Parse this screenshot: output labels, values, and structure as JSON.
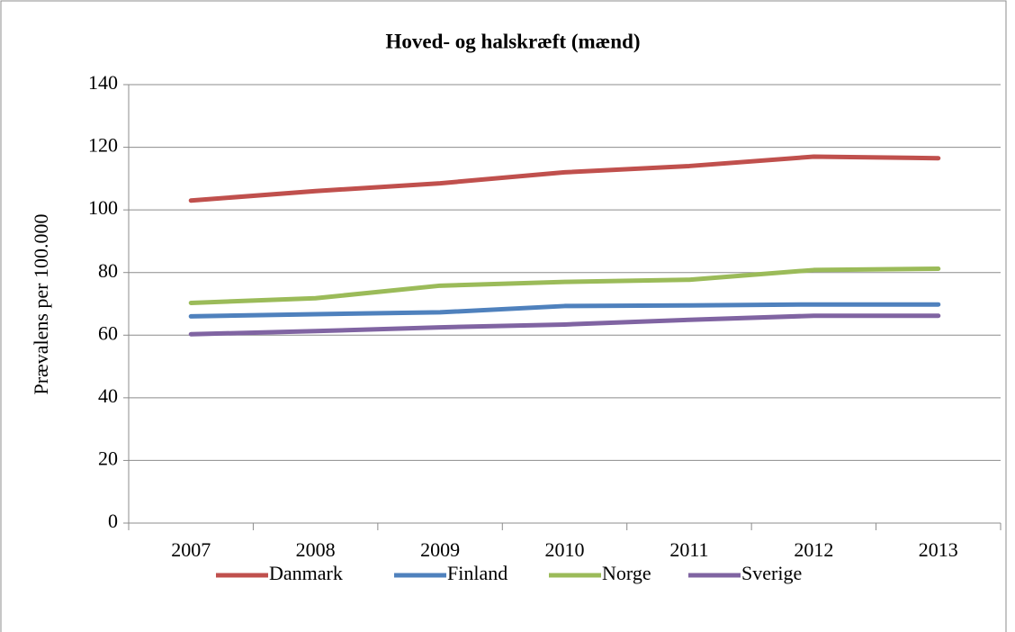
{
  "chart_data": {
    "type": "line",
    "title": "Hoved- og halskræft (mænd)",
    "y_label": "Prævalens per 100.000",
    "categories": [
      "2007",
      "2008",
      "2009",
      "2010",
      "2011",
      "2012",
      "2013"
    ],
    "series": [
      {
        "name": "Danmark",
        "color": "#c0504d",
        "values": [
          103,
          106,
          108.5,
          112,
          114,
          117,
          116.5
        ]
      },
      {
        "name": "Finland",
        "color": "#4f81bd",
        "values": [
          66,
          66.7,
          67.3,
          69.3,
          69.5,
          69.8,
          69.8
        ]
      },
      {
        "name": "Norge",
        "color": "#9bbb59",
        "values": [
          70.3,
          71.8,
          75.8,
          77,
          77.7,
          80.8,
          81.2
        ]
      },
      {
        "name": "Sverige",
        "color": "#8064a2",
        "values": [
          60.3,
          61.3,
          62.5,
          63.4,
          64.9,
          66.2,
          66.2
        ]
      }
    ],
    "ylim": [
      0,
      140
    ],
    "yticks": [
      0,
      20,
      40,
      60,
      80,
      100,
      120,
      140
    ],
    "grid": true,
    "legend": "bottom"
  }
}
